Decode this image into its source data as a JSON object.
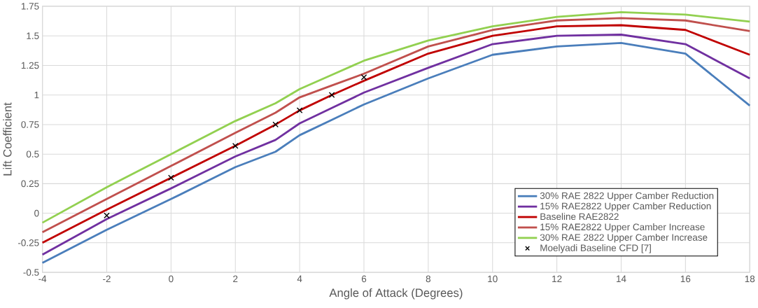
{
  "chart_data": {
    "type": "line",
    "xlabel": "Angle of Attack (Degrees)",
    "ylabel": "Lift Coefficient",
    "x": [
      -4,
      -2,
      0,
      2,
      3.25,
      4,
      5,
      6,
      8,
      10,
      12,
      14,
      16,
      18
    ],
    "series": [
      {
        "name": "30% RAE 2822 Upper Camber Reduction",
        "color": "#4a7ebb",
        "values": [
          -0.42,
          -0.14,
          0.12,
          0.39,
          0.52,
          0.66,
          0.79,
          0.92,
          1.14,
          1.34,
          1.41,
          1.44,
          1.35,
          0.91
        ]
      },
      {
        "name": "15% RAE2822 Upper Camber Reduction",
        "color": "#7030a0",
        "values": [
          -0.35,
          -0.05,
          0.21,
          0.48,
          0.62,
          0.76,
          0.89,
          1.02,
          1.23,
          1.43,
          1.5,
          1.51,
          1.43,
          1.14
        ]
      },
      {
        "name": "Baseline RAE2822",
        "color": "#c00000",
        "values": [
          -0.25,
          0.03,
          0.3,
          0.57,
          0.75,
          0.87,
          1.0,
          1.12,
          1.35,
          1.5,
          1.58,
          1.59,
          1.55,
          1.34
        ]
      },
      {
        "name": "15% RAE2822 Upper Camber Increase",
        "color": "#c0504d",
        "values": [
          -0.16,
          0.12,
          0.4,
          0.68,
          0.85,
          0.98,
          1.08,
          1.18,
          1.41,
          1.55,
          1.63,
          1.65,
          1.63,
          1.54
        ]
      },
      {
        "name": "30% RAE 2822 Upper Camber Increase",
        "color": "#92d050",
        "values": [
          -0.08,
          0.22,
          0.5,
          0.78,
          0.93,
          1.05,
          1.17,
          1.29,
          1.46,
          1.58,
          1.66,
          1.7,
          1.68,
          1.62
        ]
      },
      {
        "name": "Moelyadi Baseline CFD [7]",
        "type": "scatter",
        "marker": "cross",
        "color": "#000000",
        "x": [
          -2,
          0,
          2,
          3.25,
          4,
          5,
          6
        ],
        "values": [
          -0.02,
          0.3,
          0.57,
          0.75,
          0.87,
          1.0,
          1.15
        ]
      }
    ],
    "xlim": [
      -4,
      18
    ],
    "xticks": [
      -4,
      -2,
      0,
      2,
      4,
      6,
      8,
      10,
      12,
      14,
      16,
      18
    ],
    "ylim": [
      -0.5,
      1.75
    ],
    "yticks": [
      -0.5,
      -0.25,
      0,
      0.25,
      0.5,
      0.75,
      1,
      1.25,
      1.5,
      1.75
    ],
    "grid": true,
    "legend": "bottom right",
    "marker": "none",
    "line_style": "solid"
  }
}
